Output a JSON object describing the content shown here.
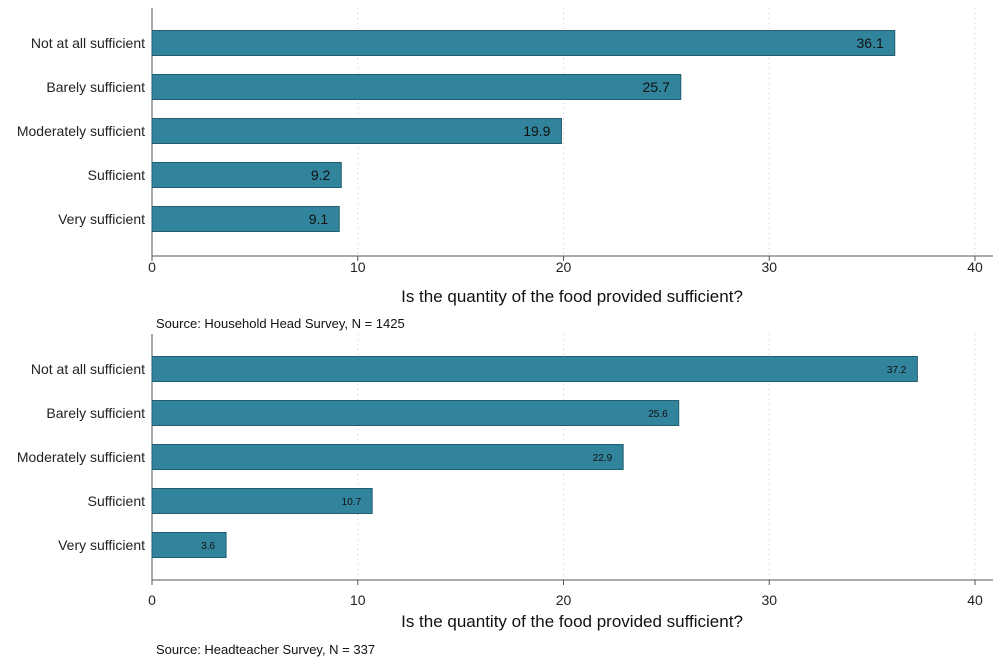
{
  "chart_data": [
    {
      "type": "bar",
      "orientation": "horizontal",
      "categories": [
        "Not at all sufficient",
        "Barely sufficient",
        "Moderately sufficient",
        "Sufficient",
        "Very sufficient"
      ],
      "values": [
        36.1,
        25.7,
        19.9,
        9.2,
        9.1
      ],
      "value_labels": [
        "36.1",
        "25.7",
        "19.9",
        "9.2",
        "9.1"
      ],
      "xlabel": "Is the quantity of the food provided sufficient?",
      "ylabel": "",
      "xlim": [
        0,
        40
      ],
      "xticks": [
        "0",
        "10",
        "20",
        "30",
        "40"
      ],
      "note": "Source: Household Head Survey, N = 1425",
      "grid": true,
      "bar_color": "#31849b"
    },
    {
      "type": "bar",
      "orientation": "horizontal",
      "categories": [
        "Not at all sufficient",
        "Barely sufficient",
        "Moderately sufficient",
        "Sufficient",
        "Very sufficient"
      ],
      "values": [
        37.2,
        25.6,
        22.9,
        10.7,
        3.6
      ],
      "value_labels": [
        "37.2",
        "25.6",
        "22.9",
        "10.7",
        "3.6"
      ],
      "xlabel": "Is the quantity of the food provided sufficient?",
      "ylabel": "",
      "xlim": [
        0,
        40
      ],
      "xticks": [
        "0",
        "10",
        "20",
        "30",
        "40"
      ],
      "note": "Source: Headteacher Survey, N = 337",
      "grid": true,
      "bar_color": "#31849b"
    }
  ]
}
